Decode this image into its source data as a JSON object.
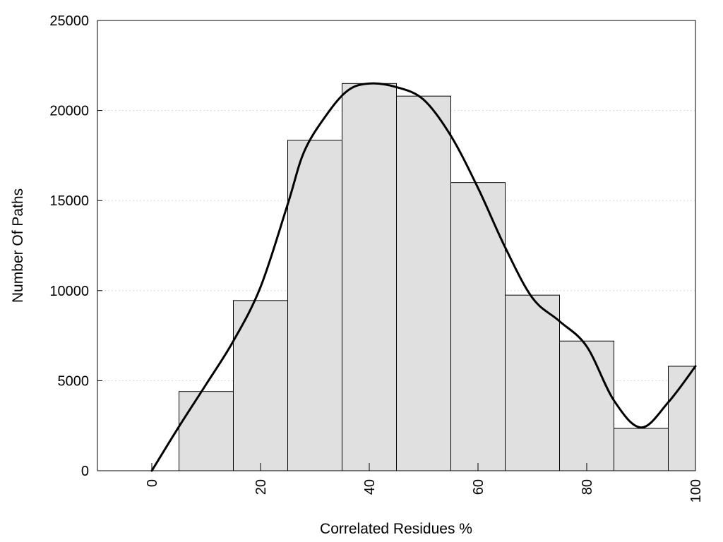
{
  "chart_data": {
    "type": "bar",
    "title": "",
    "xlabel": "Correlated Residues %",
    "ylabel": "Number Of Paths",
    "xlim": [
      -10,
      100
    ],
    "ylim": [
      0,
      25000
    ],
    "grid": "horizontal dotted",
    "xticks": [
      0,
      20,
      40,
      60,
      80,
      100
    ],
    "yticks": [
      0,
      5000,
      10000,
      15000,
      20000,
      25000
    ],
    "bin_width": 10,
    "bins": [
      {
        "center": 10,
        "value": 4400
      },
      {
        "center": 20,
        "value": 9450
      },
      {
        "center": 30,
        "value": 18350
      },
      {
        "center": 40,
        "value": 21500
      },
      {
        "center": 50,
        "value": 20800
      },
      {
        "center": 60,
        "value": 16000
      },
      {
        "center": 70,
        "value": 9750
      },
      {
        "center": 80,
        "value": 7200
      },
      {
        "center": 90,
        "value": 2350
      },
      {
        "center": 100,
        "value": 5800
      }
    ],
    "density_curve": {
      "x": [
        0,
        5,
        10,
        15,
        20,
        25,
        28,
        32,
        36,
        40,
        45,
        50,
        55,
        60,
        65,
        70,
        75,
        80,
        85,
        90,
        95,
        100
      ],
      "y": [
        0,
        2450,
        4800,
        7200,
        10200,
        14800,
        17700,
        19700,
        21100,
        21500,
        21300,
        20600,
        18600,
        15700,
        12400,
        9600,
        8300,
        6900,
        3900,
        2400,
        3800,
        5800
      ]
    },
    "colors": {
      "bar_fill": "#e0e0e0",
      "bar_stroke": "#000000",
      "curve": "#000000",
      "grid": "#d8d8d8"
    }
  }
}
